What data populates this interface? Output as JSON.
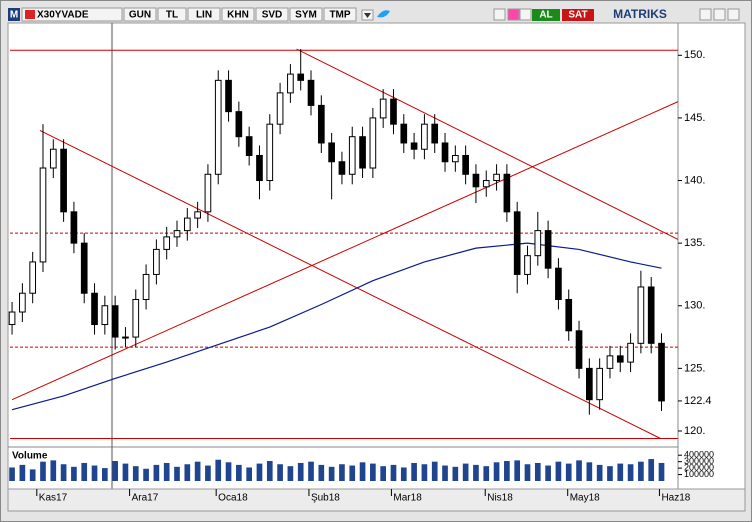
{
  "toolbar": {
    "logo": "M",
    "symbol": "X30YVADE",
    "buttons": [
      "GUN",
      "TL",
      "LIN",
      "KHN",
      "SVD",
      "SYM",
      "TMP"
    ],
    "buy": "AL",
    "sell": "SAT",
    "brand": "MATRIKS"
  },
  "chart_data": {
    "type": "candlestick",
    "x": [
      0,
      1,
      2,
      3,
      4,
      5,
      6,
      7,
      8,
      9,
      10,
      11,
      12,
      13,
      14,
      15,
      16,
      17,
      18,
      19,
      20,
      21,
      22,
      23,
      24,
      25,
      26,
      27,
      28,
      29,
      30,
      31,
      32,
      33,
      34,
      35,
      36,
      37,
      38,
      39,
      40,
      41,
      42,
      43,
      44,
      45,
      46,
      47,
      48,
      49,
      50,
      51,
      52,
      53,
      54,
      55,
      56,
      57,
      58,
      59,
      60,
      61,
      62,
      63
    ],
    "open": [
      128.5,
      129.5,
      131,
      133.5,
      141,
      142.5,
      137.5,
      135,
      131,
      128.5,
      130,
      127.5,
      127.5,
      130.5,
      132.5,
      134.5,
      135.5,
      136,
      137,
      137.5,
      140.5,
      148,
      145.5,
      143.5,
      142,
      140,
      144.5,
      147,
      148.5,
      148,
      146,
      143,
      141.5,
      140.5,
      143.5,
      141,
      145,
      146.5,
      144.5,
      143,
      142.5,
      144.5,
      143,
      141.5,
      142,
      140.5,
      139.5,
      140,
      140.5,
      137.5,
      132.5,
      134,
      136,
      133,
      130.5,
      128,
      125,
      122.5,
      125,
      126,
      125.5,
      127,
      131.5,
      127
    ],
    "high": [
      130.3,
      131.8,
      134.3,
      144.5,
      143.3,
      143.3,
      138.3,
      135.8,
      131.8,
      130.8,
      130.8,
      128.3,
      131.3,
      133.3,
      135.3,
      136.3,
      136.8,
      137.8,
      138.3,
      141.3,
      148.8,
      148.8,
      146.3,
      144.3,
      142.8,
      145.3,
      147.8,
      149.3,
      150.5,
      148.8,
      146.8,
      143.8,
      142.3,
      144.3,
      144.3,
      145.8,
      147.3,
      147.3,
      145.3,
      143.8,
      145.3,
      145.3,
      143.8,
      142.8,
      142.8,
      141.3,
      140.8,
      141.3,
      141.3,
      138.3,
      134.8,
      137.5,
      136.8,
      133.8,
      131.3,
      128.8,
      125.8,
      125.8,
      126.8,
      126.8,
      127.8,
      132.8,
      132.3,
      127.8
    ],
    "low": [
      127.7,
      128.7,
      130.2,
      132.7,
      140.2,
      136.7,
      134.2,
      130.2,
      127.7,
      127.7,
      126.5,
      126.7,
      126.7,
      129.7,
      131.7,
      133.7,
      134.7,
      135.2,
      136.2,
      136.7,
      139.7,
      144.7,
      142.7,
      141.2,
      138.5,
      139.2,
      143.7,
      146.2,
      147.2,
      145.2,
      142.2,
      138.5,
      139.7,
      139.7,
      140.2,
      140.2,
      144.2,
      143.7,
      142.2,
      141.7,
      141.7,
      142.2,
      140.7,
      140.7,
      139.7,
      138.2,
      138.7,
      139.2,
      136.7,
      131,
      131.7,
      133.2,
      132.2,
      129.7,
      127.2,
      124.2,
      121.3,
      121.7,
      124.2,
      124.7,
      124.7,
      126.2,
      126.2,
      121.6
    ],
    "close": [
      129.5,
      131,
      133.5,
      141,
      142.5,
      137.5,
      135,
      131,
      128.5,
      130,
      127.5,
      127.5,
      130.5,
      132.5,
      134.5,
      135.5,
      136,
      137,
      137.5,
      140.5,
      148,
      145.5,
      143.5,
      142,
      140,
      144.5,
      147,
      148.5,
      148,
      146,
      143,
      141.5,
      140.5,
      143.5,
      141,
      145,
      146.5,
      144.5,
      143,
      142.5,
      144.5,
      143,
      141.5,
      142,
      140.5,
      139.5,
      140,
      140.5,
      137.5,
      132.5,
      134,
      136,
      133,
      130.5,
      128,
      125,
      122.5,
      125,
      126,
      125.5,
      127,
      131.5,
      127,
      122.4
    ],
    "up_color": "#ffffff",
    "down_color": "#000000",
    "moving_average": {
      "color": "#0a1a8c",
      "x": [
        0,
        5,
        10,
        15,
        20,
        25,
        30,
        35,
        40,
        45,
        50,
        55,
        60,
        63
      ],
      "values": [
        121.7,
        122.8,
        124.2,
        125.5,
        126.9,
        128.3,
        130.1,
        132.0,
        133.5,
        134.6,
        135.0,
        134.5,
        133.5,
        133.0
      ]
    },
    "lines": [
      {
        "x": [
          -0.2,
          64.6
        ],
        "values": [
          150.4,
          150.4
        ],
        "dashed": false
      },
      {
        "x": [
          -0.2,
          64.6
        ],
        "values": [
          135.8,
          135.8
        ],
        "dashed": true
      },
      {
        "x": [
          -0.2,
          64.6
        ],
        "values": [
          126.7,
          126.7
        ],
        "dashed": true
      },
      {
        "x": [
          -0.2,
          64.6
        ],
        "values": [
          119.4,
          119.4
        ],
        "dashed": false
      },
      {
        "x": [
          0,
          64.6
        ],
        "values": [
          122.5,
          146.3
        ],
        "dashed": false
      },
      {
        "x": [
          2.7,
          62.9
        ],
        "values": [
          144.0,
          119.4
        ],
        "dashed": false
      },
      {
        "x": [
          27.6,
          64.6
        ],
        "values": [
          150.5,
          135.3
        ],
        "dashed": false
      }
    ],
    "line_color": "#cc0000",
    "xlim": [
      -0.2,
      64.6
    ],
    "ylim": [
      119.2,
      152.5
    ],
    "yticks": [
      {
        "value": 150,
        "label": "150."
      },
      {
        "value": 145,
        "label": "145."
      },
      {
        "value": 140,
        "label": "140."
      },
      {
        "value": 135,
        "label": "135."
      },
      {
        "value": 130,
        "label": "130."
      },
      {
        "value": 125,
        "label": "125."
      },
      122.4,
      {
        "value": 120,
        "label": "120."
      }
    ],
    "xticks": [
      {
        "value": 2.4,
        "label": "Kas17"
      },
      {
        "value": 11.4,
        "label": "Ara17"
      },
      {
        "value": 19.8,
        "label": "Oca18"
      },
      {
        "value": 28.8,
        "label": "Şub18"
      },
      {
        "value": 36.8,
        "label": "Mar18"
      },
      {
        "value": 45.9,
        "label": "Nis18"
      },
      {
        "value": 53.9,
        "label": "May18"
      },
      {
        "value": 62.8,
        "label": "Haz18"
      }
    ],
    "volume": {
      "label": "Volume",
      "color": "#1f4590",
      "values": [
        210000,
        250000,
        180000,
        300000,
        320000,
        260000,
        220000,
        280000,
        240000,
        200000,
        310000,
        270000,
        230000,
        190000,
        250000,
        280000,
        220000,
        260000,
        300000,
        240000,
        330000,
        290000,
        250000,
        210000,
        270000,
        310000,
        260000,
        230000,
        280000,
        300000,
        250000,
        220000,
        260000,
        240000,
        290000,
        270000,
        230000,
        250000,
        210000,
        280000,
        260000,
        300000,
        240000,
        220000,
        270000,
        250000,
        230000,
        290000,
        310000,
        320000,
        260000,
        280000,
        240000,
        300000,
        270000,
        320000,
        290000,
        250000,
        230000,
        270000,
        260000,
        300000,
        340000,
        280000
      ],
      "ylim": [
        0,
        450000
      ],
      "yticks": [
        400000,
        300000,
        200000,
        100000
      ]
    }
  }
}
